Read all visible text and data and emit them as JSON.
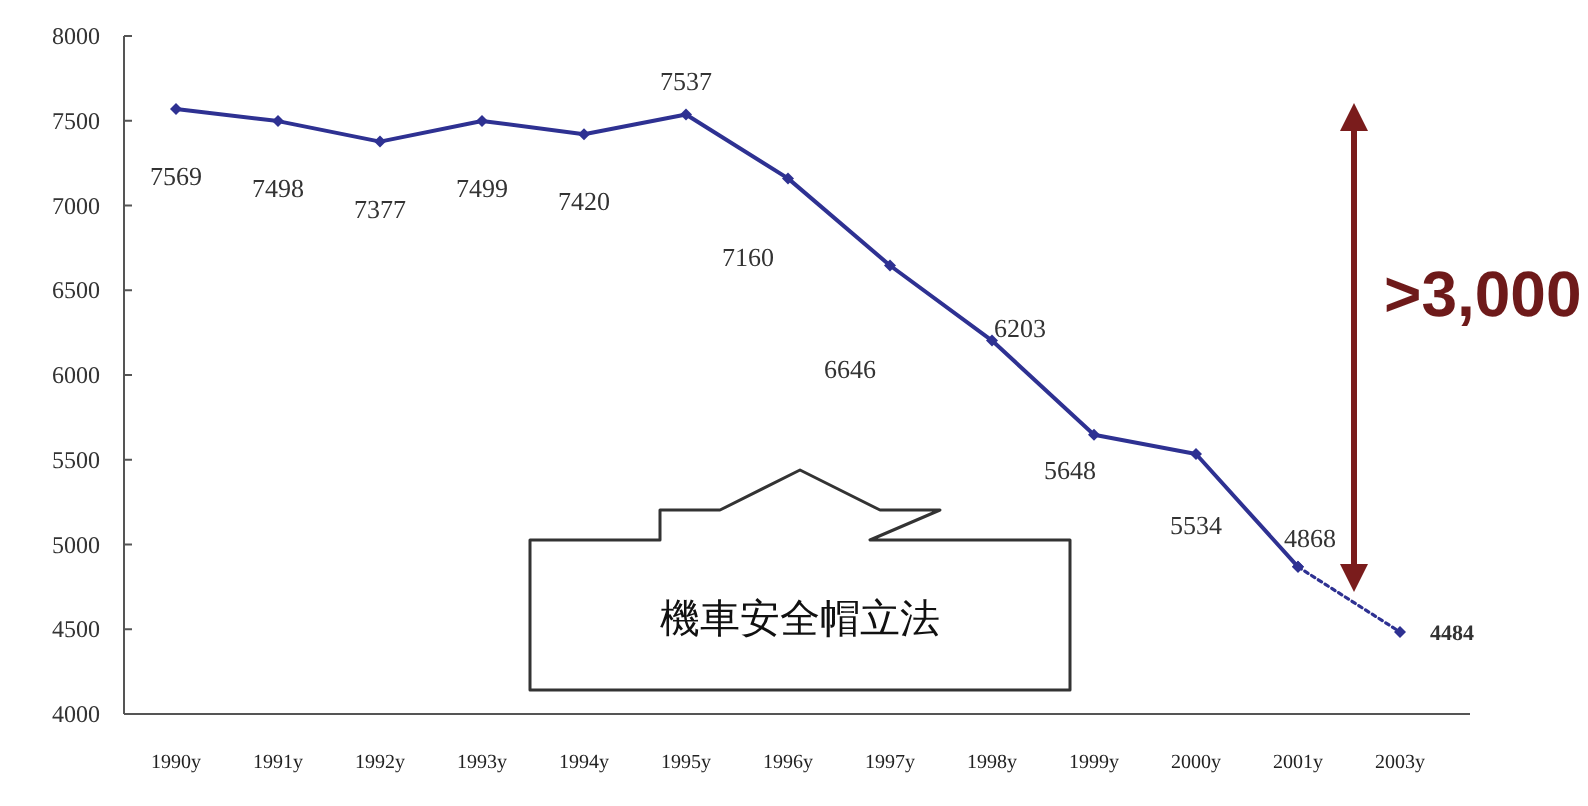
{
  "chart_data": {
    "type": "line",
    "categories": [
      "1990y",
      "1991y",
      "1992y",
      "1993y",
      "1994y",
      "1995y",
      "1996y",
      "1997y",
      "1998y",
      "1999y",
      "2000y",
      "2001y",
      "2003y"
    ],
    "series": [
      {
        "color": "#2e3192",
        "line_style": "solid",
        "values": [
          7569,
          7498,
          7377,
          7499,
          7420,
          7537,
          7160,
          6646,
          6203,
          5648,
          5534,
          4868,
          null
        ]
      },
      {
        "color": "#2e3192",
        "line_style": "dotted",
        "values": [
          null,
          null,
          null,
          null,
          null,
          null,
          null,
          null,
          null,
          null,
          null,
          4868,
          4484
        ],
        "value_labels": [
          null,
          null,
          null,
          null,
          null,
          null,
          null,
          null,
          null,
          null,
          null,
          null,
          "4484"
        ]
      }
    ],
    "ylim": [
      4000,
      8000
    ],
    "yticks": [
      4000,
      4500,
      5000,
      5500,
      6000,
      6500,
      7000,
      7500,
      8000
    ],
    "marker": "diamond",
    "data_labels": true,
    "grid": false,
    "annotations": [
      ">3,000",
      "機車安全帽立法"
    ]
  }
}
